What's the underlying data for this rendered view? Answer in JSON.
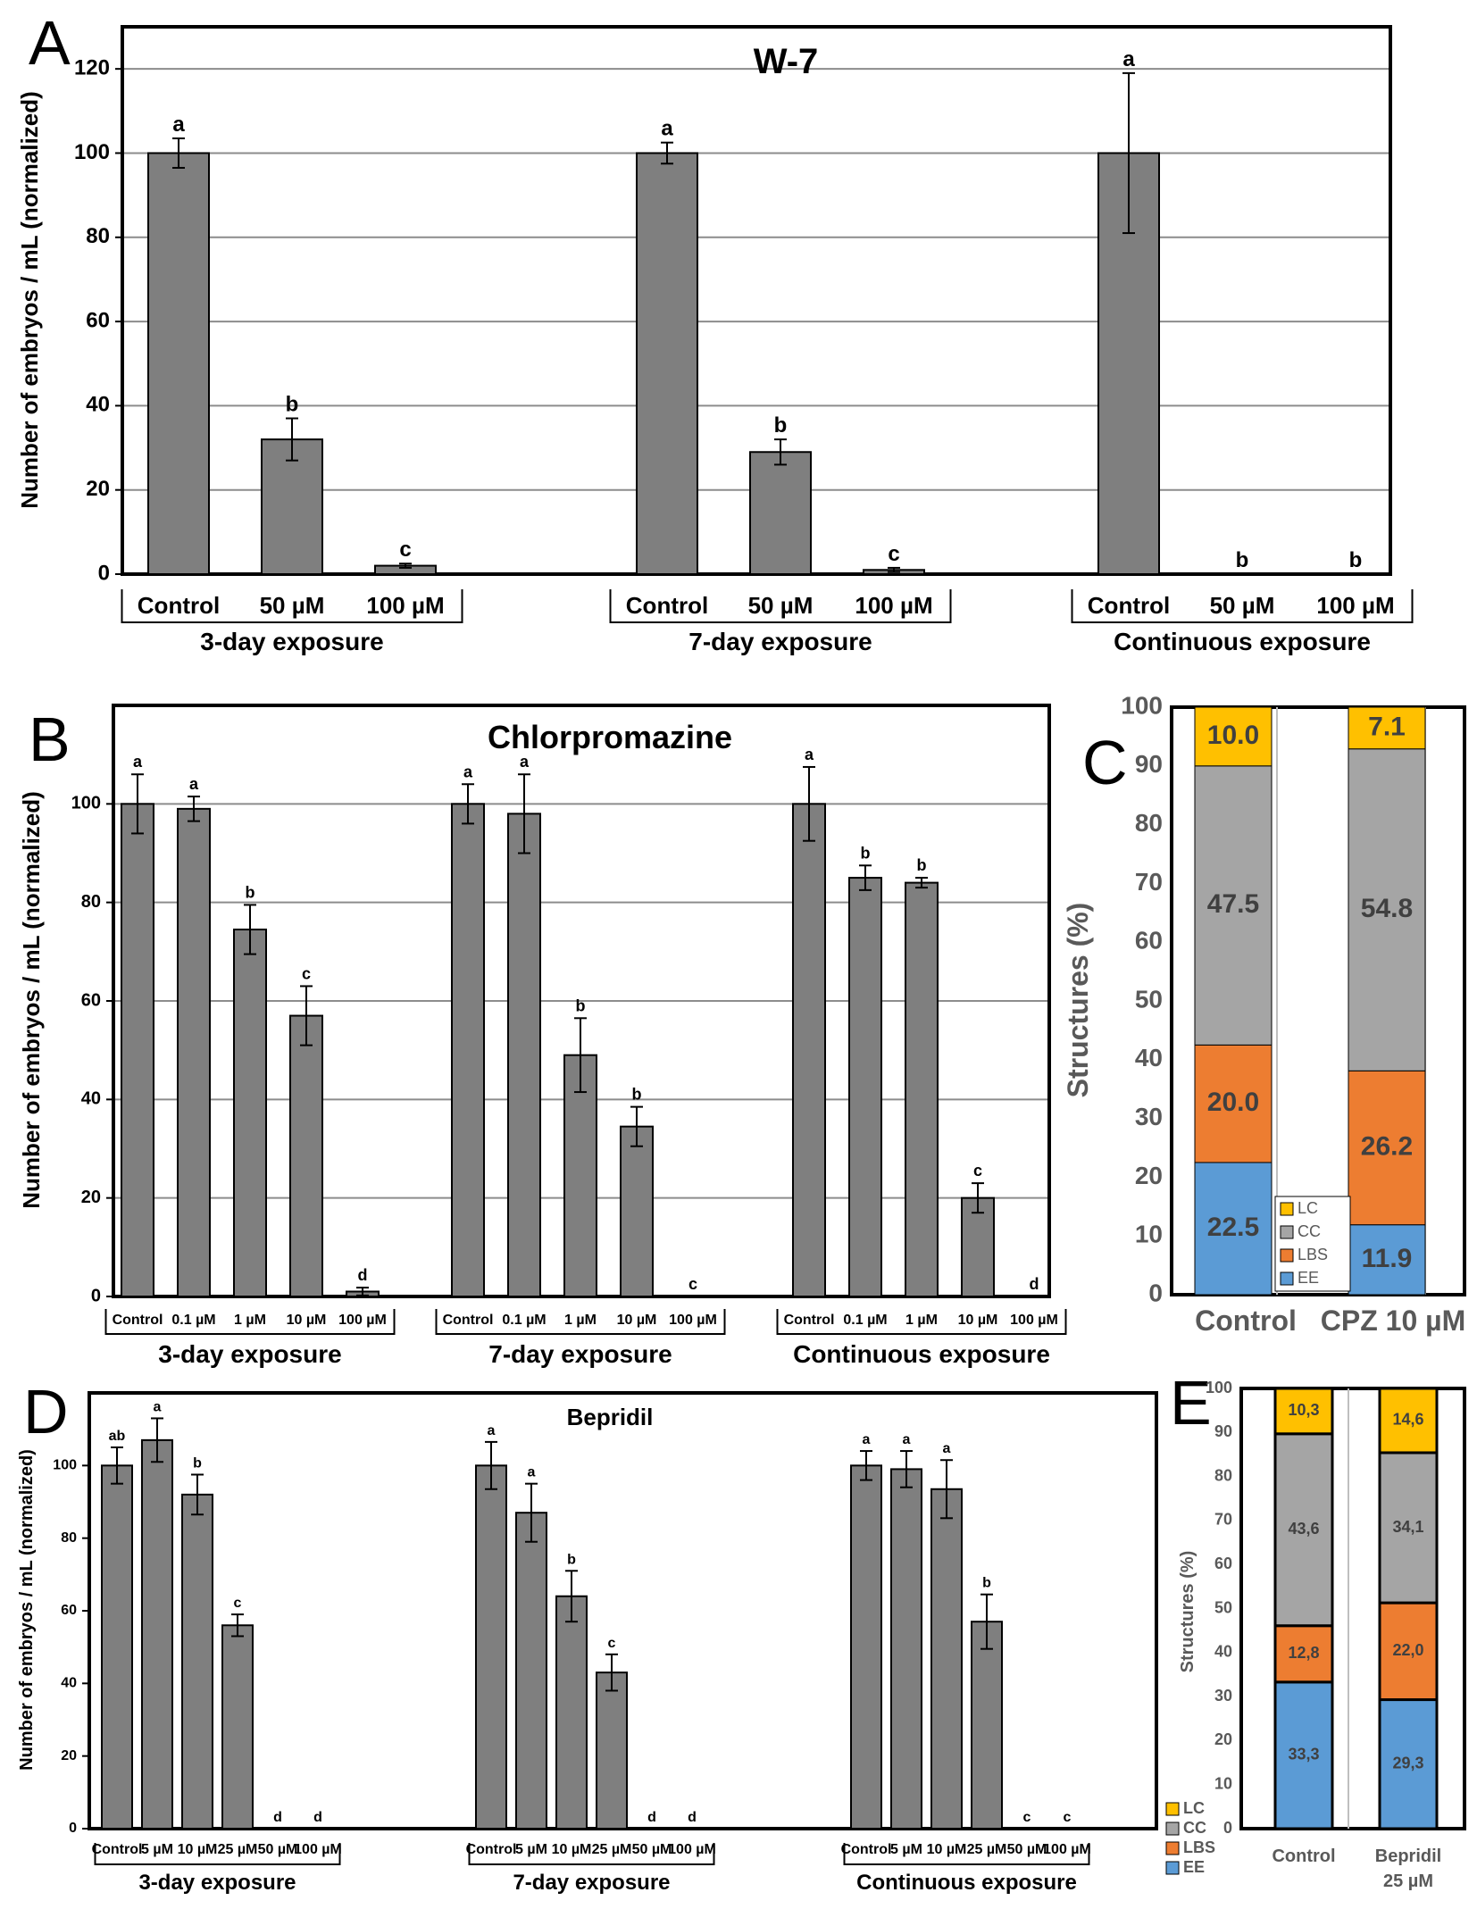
{
  "chart_data": [
    {
      "panel": "A",
      "type": "bar",
      "title": "W-7",
      "ylabel": "Number of embryos / mL (normalized)",
      "ylim": [
        0,
        130
      ],
      "yticks": [
        0,
        20,
        40,
        60,
        80,
        100,
        120
      ],
      "grid": true,
      "groups": [
        {
          "name": "3-day exposure",
          "categories": [
            "Control",
            "50 µM",
            "100 µM"
          ],
          "values": [
            100,
            32,
            2
          ],
          "errors": [
            3.5,
            5,
            0.5
          ],
          "letters": [
            "a",
            "b",
            "c"
          ]
        },
        {
          "name": "7-day exposure",
          "categories": [
            "Control",
            "50 µM",
            "100 µM"
          ],
          "values": [
            100,
            29,
            1
          ],
          "errors": [
            2.5,
            3,
            0.5
          ],
          "letters": [
            "a",
            "b",
            "c"
          ]
        },
        {
          "name": "Continuous exposure",
          "categories": [
            "Control",
            "50 µM",
            "100 µM"
          ],
          "values": [
            100,
            0,
            0
          ],
          "errors": [
            19,
            0,
            0
          ],
          "letters": [
            "a",
            "b",
            "b"
          ]
        }
      ]
    },
    {
      "panel": "B",
      "type": "bar",
      "title": "Chlorpromazine",
      "ylabel": "Number of embryos / mL (normalized)",
      "ylim": [
        0,
        120
      ],
      "yticks": [
        0,
        20,
        40,
        60,
        80,
        100
      ],
      "grid": true,
      "groups": [
        {
          "name": "3-day exposure",
          "categories": [
            "Control",
            "0.1 µM",
            "1 µM",
            "10 µM",
            "100 µM"
          ],
          "values": [
            100,
            99,
            74.5,
            57,
            1
          ],
          "errors": [
            6,
            2.5,
            5,
            6,
            0.8
          ],
          "letters": [
            "a",
            "a",
            "b",
            "c",
            "d"
          ]
        },
        {
          "name": "7-day exposure",
          "categories": [
            "Control",
            "0.1 µM",
            "1 µM",
            "10 µM",
            "100 µM"
          ],
          "values": [
            100,
            98,
            49,
            34.5,
            0
          ],
          "errors": [
            4,
            8,
            7.5,
            4,
            0
          ],
          "letters": [
            "a",
            "a",
            "b",
            "b",
            "c"
          ]
        },
        {
          "name": "Continuous exposure",
          "categories": [
            "Control",
            "0.1 µM",
            "1 µM",
            "10 µM",
            "100 µM"
          ],
          "values": [
            100,
            85,
            84,
            20,
            0
          ],
          "errors": [
            7.5,
            2.5,
            1,
            3,
            0
          ],
          "letters": [
            "a",
            "b",
            "b",
            "c",
            "d"
          ]
        }
      ]
    },
    {
      "panel": "C",
      "type": "stacked-bar",
      "ylabel": "Structures (%)",
      "ylim": [
        0,
        100
      ],
      "yticks": [
        0,
        10,
        20,
        30,
        40,
        50,
        60,
        70,
        80,
        90,
        100
      ],
      "categories": [
        "Control",
        "CPZ 10 µM"
      ],
      "series": [
        {
          "name": "EE",
          "color": "#5b9bd5",
          "values": [
            22.5,
            11.9
          ],
          "labels": [
            "22.5",
            "11.9"
          ]
        },
        {
          "name": "LBS",
          "color": "#ed7d31",
          "values": [
            20.0,
            26.2
          ],
          "labels": [
            "20.0",
            "26.2"
          ]
        },
        {
          "name": "CC",
          "color": "#a5a5a5",
          "values": [
            47.5,
            54.8
          ],
          "labels": [
            "47.5",
            "54.8"
          ]
        },
        {
          "name": "LC",
          "color": "#ffc000",
          "values": [
            10.0,
            7.1
          ],
          "labels": [
            "10.0",
            "7.1"
          ]
        }
      ],
      "legend_order": [
        "LC",
        "CC",
        "LBS",
        "EE"
      ]
    },
    {
      "panel": "D",
      "type": "bar",
      "title": "Bepridil",
      "ylabel": "Number of embryos / mL (normalized)",
      "ylim": [
        0,
        120
      ],
      "yticks": [
        0,
        20,
        40,
        60,
        80,
        100
      ],
      "grid": false,
      "groups": [
        {
          "name": "3-day exposure",
          "categories": [
            "Control",
            "5 µM",
            "10 µM",
            "25 µM",
            "50 µM",
            "100 µM"
          ],
          "values": [
            100,
            107,
            92,
            56,
            0,
            0
          ],
          "errors": [
            5,
            6,
            5.5,
            3,
            0,
            0
          ],
          "letters": [
            "ab",
            "a",
            "b",
            "c",
            "d",
            "d"
          ]
        },
        {
          "name": "7-day exposure",
          "categories": [
            "Control",
            "5 µM",
            "10 µM",
            "25 µM",
            "50 µM",
            "100 µM"
          ],
          "values": [
            100,
            87,
            64,
            43,
            0,
            0
          ],
          "errors": [
            6.5,
            8,
            7,
            5,
            0,
            0
          ],
          "letters": [
            "a",
            "a",
            "b",
            "c",
            "d",
            "d"
          ]
        },
        {
          "name": "Continuous exposure",
          "categories": [
            "Control",
            "5 µM",
            "10 µM",
            "25 µM",
            "50 µM",
            "100 µM"
          ],
          "values": [
            100,
            99,
            93.5,
            57,
            0,
            0
          ],
          "errors": [
            4,
            5,
            8,
            7.5,
            0,
            0
          ],
          "letters": [
            "a",
            "a",
            "a",
            "b",
            "c",
            "c"
          ]
        }
      ]
    },
    {
      "panel": "E",
      "type": "stacked-bar",
      "ylabel": "Structures (%)",
      "ylim": [
        0,
        100
      ],
      "yticks": [
        0,
        10,
        20,
        30,
        40,
        50,
        60,
        70,
        80,
        90,
        100
      ],
      "categories": [
        "Control",
        "Bepridil 25 µM"
      ],
      "series": [
        {
          "name": "EE",
          "color": "#5b9bd5",
          "values": [
            33.3,
            29.3
          ],
          "labels": [
            "33,3",
            "29,3"
          ]
        },
        {
          "name": "LBS",
          "color": "#ed7d31",
          "values": [
            12.8,
            22.0
          ],
          "labels": [
            "12,8",
            "22,0"
          ]
        },
        {
          "name": "CC",
          "color": "#a5a5a5",
          "values": [
            43.6,
            34.1
          ],
          "labels": [
            "43,6",
            "34,1"
          ]
        },
        {
          "name": "LC",
          "color": "#ffc000",
          "values": [
            10.3,
            14.6
          ],
          "labels": [
            "10,3",
            "14,6"
          ]
        }
      ],
      "legend_order": [
        "LC",
        "CC",
        "LBS",
        "EE"
      ]
    }
  ]
}
